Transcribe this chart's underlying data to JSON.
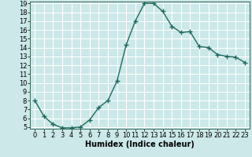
{
  "x": [
    0,
    1,
    2,
    3,
    4,
    5,
    6,
    7,
    8,
    9,
    10,
    11,
    12,
    13,
    14,
    15,
    16,
    17,
    18,
    19,
    20,
    21,
    22,
    23
  ],
  "y": [
    8.0,
    6.2,
    5.3,
    4.9,
    4.9,
    5.0,
    5.8,
    7.2,
    8.0,
    10.2,
    14.3,
    17.0,
    19.0,
    19.0,
    18.1,
    16.4,
    15.7,
    15.8,
    14.1,
    14.0,
    13.2,
    13.0,
    12.9,
    12.3
  ],
  "xlabel": "Humidex (Indice chaleur)",
  "line_color": "#1e6b5e",
  "marker": "+",
  "marker_size": 4,
  "bg_color": "#cce8e8",
  "grid_color": "#ffffff",
  "ylim": [
    5,
    19
  ],
  "xlim": [
    -0.5,
    23.5
  ],
  "yticks": [
    5,
    6,
    7,
    8,
    9,
    10,
    11,
    12,
    13,
    14,
    15,
    16,
    17,
    18,
    19
  ],
  "xticks": [
    0,
    1,
    2,
    3,
    4,
    5,
    6,
    7,
    8,
    9,
    10,
    11,
    12,
    13,
    14,
    15,
    16,
    17,
    18,
    19,
    20,
    21,
    22,
    23
  ],
  "xlabel_fontsize": 7,
  "tick_fontsize": 6,
  "marker_linewidth": 1.0,
  "line_width": 1.0
}
